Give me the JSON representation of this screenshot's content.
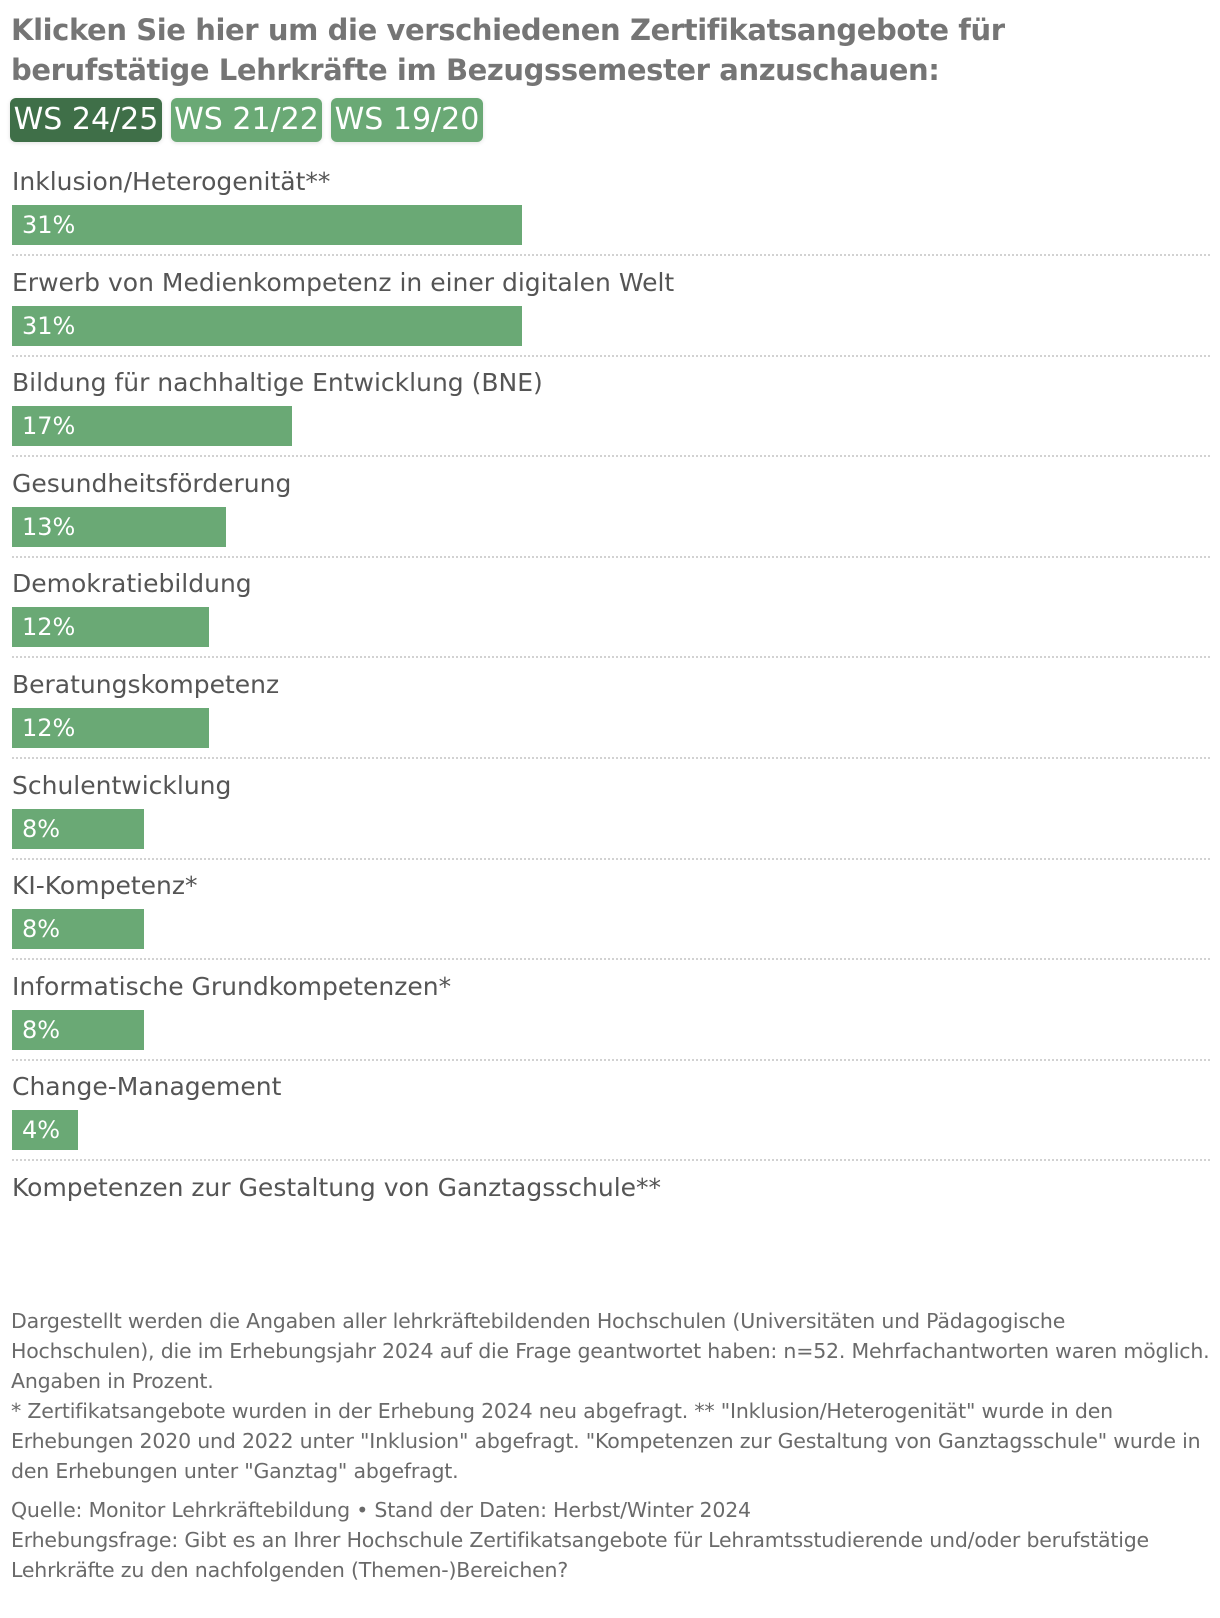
{
  "heading": "Klicken Sie hier um die verschiedenen Zertifikatsangebote für berufstätige Lehrkräfte im Bezugssemester anzuschauen:",
  "tabs": [
    {
      "label": "WS 24/25",
      "active": true
    },
    {
      "label": "WS 21/22",
      "active": false
    },
    {
      "label": "WS 19/20",
      "active": false
    }
  ],
  "colors": {
    "bar": "#6aa975",
    "tab_active": "#3f6f48",
    "tab_inactive": "#6aa975",
    "heading": "#757575",
    "text": "#555555"
  },
  "chart_data": {
    "type": "bar",
    "orientation": "horizontal",
    "unit": "%",
    "xlim": [
      0,
      100
    ],
    "categories": [
      "Inklusion/Heterogenität**",
      "Erwerb von Medienkompetenz in einer digitalen Welt",
      "Bildung für nachhaltige Entwicklung (BNE)",
      "Gesundheitsförderung",
      "Demokratiebildung",
      "Beratungskompetenz",
      "Schulentwicklung",
      "KI-Kompetenz*",
      "Informatische Grundkompetenzen*",
      "Change-Management",
      "Kompetenzen zur Gestaltung von Ganztagsschule**"
    ],
    "values": [
      31,
      31,
      17,
      13,
      12,
      12,
      8,
      8,
      8,
      4,
      null
    ],
    "labels": [
      "31%",
      "31%",
      "17%",
      "13%",
      "12%",
      "12%",
      "8%",
      "8%",
      "8%",
      "4%",
      ""
    ]
  },
  "notes": {
    "description": "Dargestellt werden die Angaben aller lehrkräftebildenden Hochschulen (Universitäten und Pädagogische Hochschulen), die im Erhebungsjahr 2024 auf die Frage geantwortet haben: n=52. Mehrfachantworten waren möglich. Angaben in Prozent.",
    "footnote": "* Zertifikatsangebote wurden in der Erhebung 2024 neu abgefragt. ** \"Inklusion/Heterogenität\" wurde in den Erhebungen 2020 und 2022 unter \"Inklusion\" abgefragt. \"Kompetenzen zur Gestaltung von Ganztagsschule\" wurde in den Erhebungen unter \"Ganztag\" abgefragt.",
    "source": "Quelle: Monitor Lehrkräftebildung • Stand der Daten: Herbst/Winter 2024",
    "question": "Erhebungsfrage: Gibt es an Ihrer Hochschule Zertifikatsangebote für Lehramtsstudierende und/oder berufstätige Lehrkräfte zu den nachfolgenden (Themen-)Bereichen?"
  }
}
